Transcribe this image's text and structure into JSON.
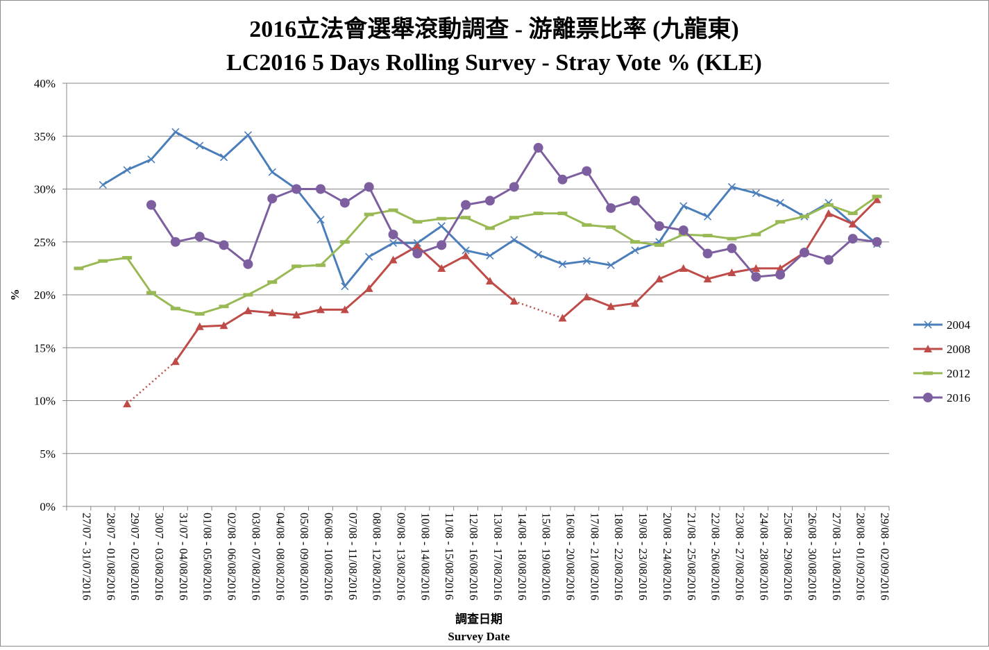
{
  "chart_data": {
    "type": "line",
    "title": "2016立法會選舉滾動調查 - 游離票比率 (九龍東)",
    "subtitle": "LC2016 5 Days Rolling Survey - Stray Vote % (KLE)",
    "xlabel": "調查日期",
    "xlabel_en": "Survey Date",
    "ylabel": "%",
    "ylim": [
      0,
      40
    ],
    "yticks": [
      "0%",
      "5%",
      "10%",
      "15%",
      "20%",
      "25%",
      "30%",
      "35%",
      "40%"
    ],
    "grid": "horizontal",
    "legend_position": "right",
    "categories": [
      "27/07 - 31/07/2016",
      "28/07 - 01/08/2016",
      "29/07 - 02/08/2016",
      "30/07 - 03/08/2016",
      "31/07 - 04/08/2016",
      "01/08 - 05/08/2016",
      "02/08 - 06/08/2016",
      "03/08 - 07/08/2016",
      "04/08 - 08/08/2016",
      "05/08 - 09/08/2016",
      "06/08 - 10/08/2016",
      "07/08 - 11/08/2016",
      "08/08 - 12/08/2016",
      "09/08 - 13/08/2016",
      "10/08 - 14/08/2016",
      "11/08 - 15/08/2016",
      "12/08 - 16/08/2016",
      "13/08 - 17/08/2016",
      "14/08 - 18/08/2016",
      "15/08 - 19/08/2016",
      "16/08 - 20/08/2016",
      "17/08 - 21/08/2016",
      "18/08 - 22/08/2016",
      "19/08 - 23/08/2016",
      "20/08 - 24/08/2016",
      "21/08 - 25/08/2016",
      "22/08 - 26/08/2016",
      "23/08 - 27/08/2016",
      "24/08 - 28/08/2016",
      "25/08 - 29/08/2016",
      "26/08 - 30/08/2016",
      "27/08 - 31/08/2016",
      "28/08 - 01/09/2016",
      "29/08 - 02/09/2016"
    ],
    "series": [
      {
        "name": "2004",
        "color": "#4a7ebb",
        "marker": "x",
        "values": [
          null,
          30.4,
          31.8,
          32.8,
          35.4,
          34.1,
          33.0,
          35.1,
          31.6,
          30.0,
          27.1,
          20.8,
          23.6,
          24.9,
          24.9,
          26.5,
          24.2,
          23.7,
          25.2,
          23.8,
          22.9,
          23.2,
          22.8,
          24.2,
          25.0,
          28.4,
          27.4,
          30.2,
          29.6,
          28.7,
          27.4,
          28.7,
          26.7,
          24.8
        ]
      },
      {
        "name": "2008",
        "color": "#be4b48",
        "marker": "triangle",
        "values": [
          null,
          null,
          9.7,
          null,
          13.7,
          17.0,
          17.1,
          18.5,
          18.3,
          18.1,
          18.6,
          18.6,
          20.6,
          23.3,
          24.6,
          22.5,
          23.7,
          21.3,
          19.4,
          null,
          17.8,
          19.8,
          18.9,
          19.2,
          21.5,
          22.5,
          21.5,
          22.1,
          22.5,
          22.5,
          24.0,
          27.7,
          26.7,
          29.0
        ],
        "dotted_gaps": true
      },
      {
        "name": "2012",
        "color": "#98b954",
        "marker": "dash",
        "values": [
          22.5,
          23.2,
          23.5,
          20.2,
          18.7,
          18.2,
          18.9,
          20.0,
          21.2,
          22.7,
          22.8,
          25.0,
          27.6,
          28.0,
          26.9,
          27.2,
          27.3,
          26.3,
          27.3,
          27.7,
          27.7,
          26.6,
          26.4,
          25.0,
          24.7,
          25.7,
          25.6,
          25.3,
          25.7,
          26.9,
          27.4,
          28.5,
          27.7,
          29.3
        ]
      },
      {
        "name": "2016",
        "color": "#7d5fa0",
        "marker": "circle",
        "values": [
          null,
          null,
          null,
          28.5,
          25.0,
          25.5,
          24.7,
          22.9,
          29.1,
          30.0,
          30.0,
          28.7,
          30.2,
          25.7,
          23.9,
          24.7,
          28.5,
          28.9,
          30.2,
          33.9,
          30.9,
          31.7,
          28.2,
          28.9,
          26.5,
          26.1,
          23.9,
          24.4,
          21.7,
          21.9,
          24.0,
          23.3,
          25.3,
          25.0
        ]
      }
    ]
  }
}
